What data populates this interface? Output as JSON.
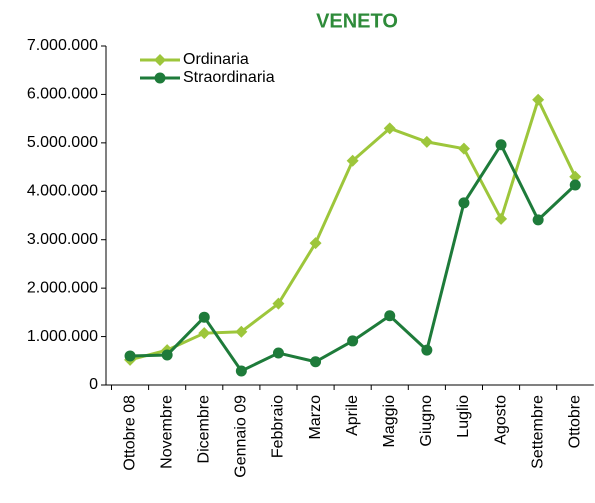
{
  "chart_data": {
    "type": "line",
    "title": "VENETO",
    "categories": [
      "Ottobre 08",
      "Novembre",
      "Dicembre",
      "Gennaio 09",
      "Febbraio",
      "Marzo",
      "Aprile",
      "Maggio",
      "Giugno",
      "Luglio",
      "Agosto",
      "Settembre",
      "Ottobre"
    ],
    "series": [
      {
        "name": "Ordinaria",
        "color": "#9dc63b",
        "marker": "diamond",
        "values": [
          520000,
          720000,
          1070000,
          1100000,
          1680000,
          2930000,
          4630000,
          5300000,
          5020000,
          4880000,
          3430000,
          5890000,
          4300000
        ]
      },
      {
        "name": "Straordinaria",
        "color": "#1e7b3a",
        "marker": "circle",
        "values": [
          600000,
          620000,
          1400000,
          290000,
          660000,
          480000,
          910000,
          1430000,
          720000,
          3760000,
          4960000,
          3410000,
          4130000
        ]
      }
    ],
    "ylim": [
      0,
      7000000
    ],
    "yticks": [
      0,
      {
        "value": 1000000,
        "label": "1.000.000"
      },
      {
        "value": 2000000,
        "label": "2.000.000"
      },
      {
        "value": 3000000,
        "label": "3.000.000"
      },
      {
        "value": 4000000,
        "label": "4.000.000"
      },
      {
        "value": 5000000,
        "label": "5.000.000"
      },
      {
        "value": 6000000,
        "label": "6.000.000"
      },
      {
        "value": 7000000,
        "label": "7.000.000"
      }
    ],
    "legend": "upper left",
    "grid": false
  }
}
